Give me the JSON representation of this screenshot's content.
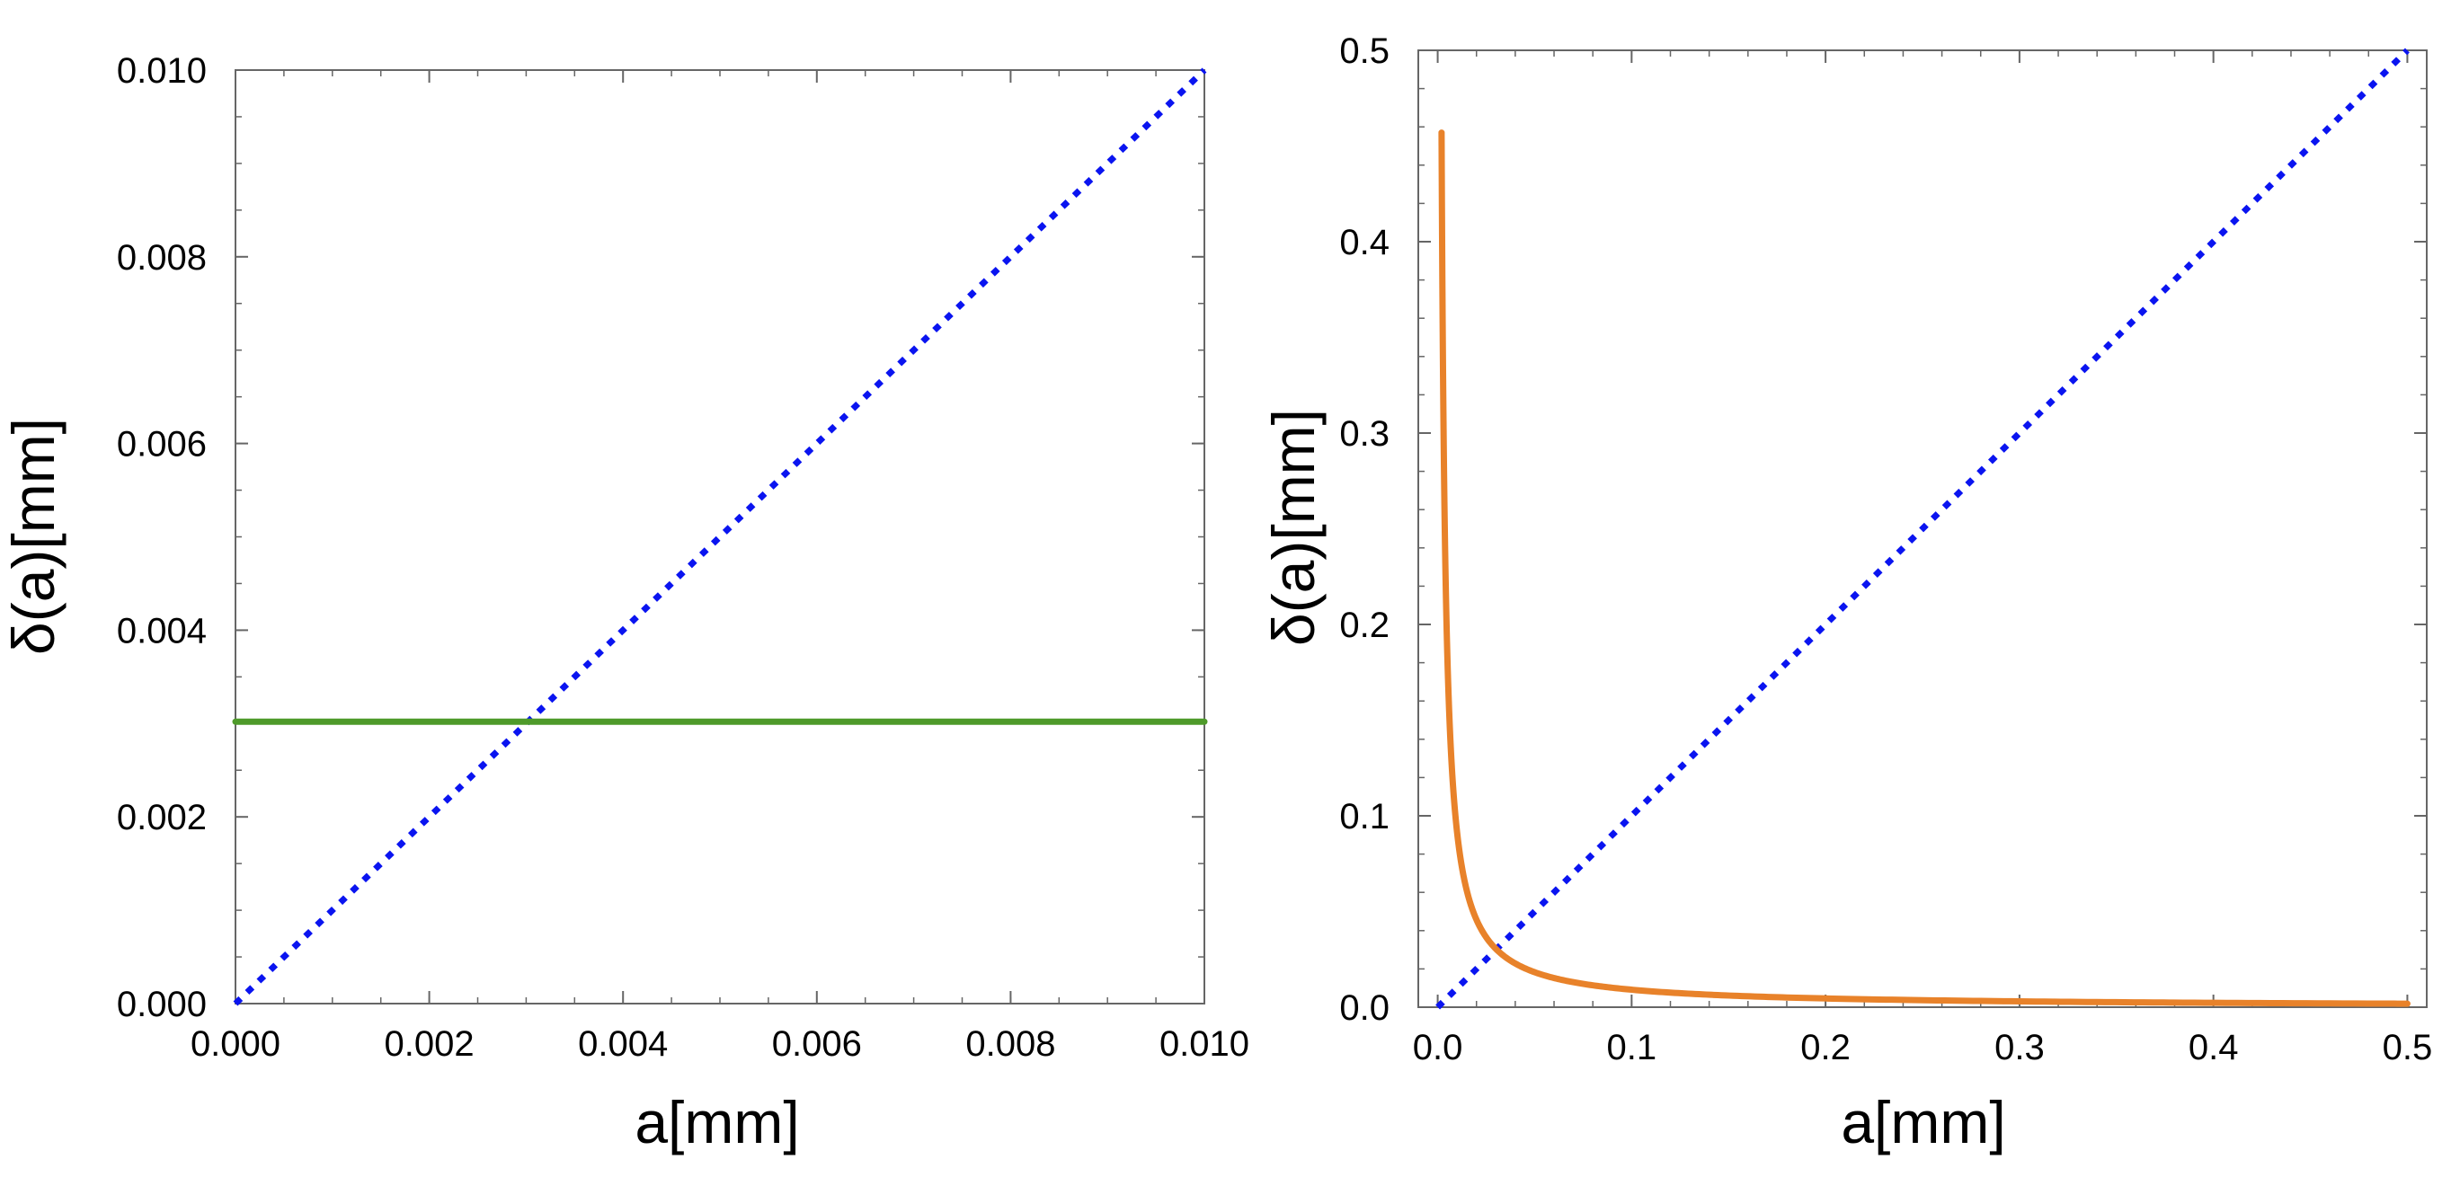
{
  "chart_data": [
    {
      "type": "line",
      "title": "",
      "xlabel": "a[mm]",
      "ylabel": "δ(a)[mm]",
      "xlim": [
        0.0,
        0.01
      ],
      "ylim": [
        0.0,
        0.01
      ],
      "x_ticks": [
        "0.000",
        "0.002",
        "0.004",
        "0.006",
        "0.008",
        "0.010"
      ],
      "y_ticks": [
        "0.000",
        "0.002",
        "0.004",
        "0.006",
        "0.008",
        "0.010"
      ],
      "series": [
        {
          "name": "diagonal",
          "color": "#0a14f0",
          "style": "dotted",
          "x": [
            0.0,
            0.01
          ],
          "y": [
            0.0,
            0.01
          ]
        },
        {
          "name": "constant",
          "color": "#4e9a2a",
          "style": "solid",
          "x": [
            0.0,
            0.01
          ],
          "y": [
            0.00302,
            0.00302
          ]
        }
      ]
    },
    {
      "type": "line",
      "title": "",
      "xlabel": "a[mm]",
      "ylabel": "δ(a)[mm]",
      "xlim": [
        -0.01,
        0.51
      ],
      "ylim": [
        0.0,
        0.5
      ],
      "x_ticks": [
        "0.0",
        "0.1",
        "0.2",
        "0.3",
        "0.4",
        "0.5"
      ],
      "y_ticks": [
        "0.0",
        "0.1",
        "0.2",
        "0.3",
        "0.4",
        "0.5"
      ],
      "series": [
        {
          "name": "diagonal",
          "color": "#0a14f0",
          "style": "dotted",
          "x": [
            0.0,
            0.5
          ],
          "y": [
            0.0,
            0.5
          ]
        },
        {
          "name": "decay",
          "color": "#e8822a",
          "style": "solid",
          "x": [
            0.002,
            0.003,
            0.004,
            0.005,
            0.007,
            0.01,
            0.015,
            0.02,
            0.03,
            0.04,
            0.05,
            0.07,
            0.1,
            0.15,
            0.2,
            0.25,
            0.3,
            0.35,
            0.4,
            0.45,
            0.5
          ],
          "y": [
            0.457,
            0.305,
            0.229,
            0.183,
            0.131,
            0.0915,
            0.061,
            0.0458,
            0.0305,
            0.0229,
            0.0183,
            0.0131,
            0.00915,
            0.0061,
            0.00458,
            0.00366,
            0.00305,
            0.00261,
            0.00229,
            0.00203,
            0.00183
          ]
        }
      ]
    }
  ]
}
